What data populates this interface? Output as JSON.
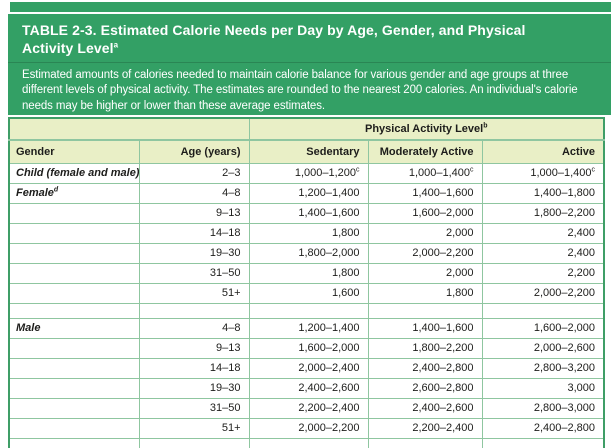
{
  "colors": {
    "accent": "#33a065",
    "headerBg": "#e9efc6",
    "border": "#8fc6a0",
    "borderStrong": "#3f9e67",
    "text": "#1d1d1b"
  },
  "callout": {
    "title": "TABLE 2-3. Estimated Calorie Needs per Day by Age, Gender, and Physical Activity Level^a",
    "description": "Estimated amounts of calories needed to maintain calorie balance for various gender and age groups at three different levels of physical activity. The estimates are rounded to the nearest 200 calories. An individual's calorie needs may be higher or lower than these average estimates."
  },
  "table": {
    "spanning_header": "Physical Activity Level^b",
    "columns": [
      "Gender",
      "Age (years)",
      "Sedentary",
      "Moderately Active",
      "Active"
    ],
    "rows": [
      {
        "gender": "Child (female and male)",
        "age": "2–3",
        "sedentary": "1,000–1,200^c",
        "moderately_active": "1,000–1,400^c",
        "active": "1,000–1,400^c"
      },
      {
        "gender": "Female^d",
        "age": "4–8",
        "sedentary": "1,200–1,400",
        "moderately_active": "1,400–1,600",
        "active": "1,400–1,800"
      },
      {
        "gender": "",
        "age": "9–13",
        "sedentary": "1,400–1,600",
        "moderately_active": "1,600–2,000",
        "active": "1,800–2,200"
      },
      {
        "gender": "",
        "age": "14–18",
        "sedentary": "1,800",
        "moderately_active": "2,000",
        "active": "2,400"
      },
      {
        "gender": "",
        "age": "19–30",
        "sedentary": "1,800–2,000",
        "moderately_active": "2,000–2,200",
        "active": "2,400"
      },
      {
        "gender": "",
        "age": "31–50",
        "sedentary": "1,800",
        "moderately_active": "2,000",
        "active": "2,200"
      },
      {
        "gender": "",
        "age": "51+",
        "sedentary": "1,600",
        "moderately_active": "1,800",
        "active": "2,000–2,200"
      },
      {
        "spacer": true
      },
      {
        "gender": "Male",
        "age": "4–8",
        "sedentary": "1,200–1,400",
        "moderately_active": "1,400–1,600",
        "active": "1,600–2,000"
      },
      {
        "gender": "",
        "age": "9–13",
        "sedentary": "1,600–2,000",
        "moderately_active": "1,800–2,200",
        "active": "2,000–2,600"
      },
      {
        "gender": "",
        "age": "14–18",
        "sedentary": "2,000–2,400",
        "moderately_active": "2,400–2,800",
        "active": "2,800–3,200"
      },
      {
        "gender": "",
        "age": "19–30",
        "sedentary": "2,400–2,600",
        "moderately_active": "2,600–2,800",
        "active": "3,000"
      },
      {
        "gender": "",
        "age": "31–50",
        "sedentary": "2,200–2,400",
        "moderately_active": "2,400–2,600",
        "active": "2,800–3,000"
      },
      {
        "gender": "",
        "age": "51+",
        "sedentary": "2,000–2,200",
        "moderately_active": "2,200–2,400",
        "active": "2,400–2,800"
      },
      {
        "spacer": true,
        "partial": true
      }
    ]
  }
}
